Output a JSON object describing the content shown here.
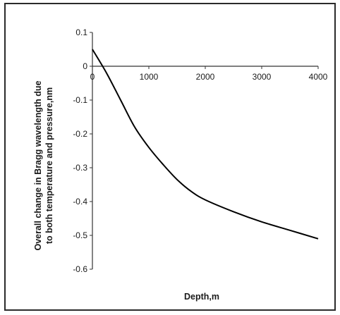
{
  "chart_data": {
    "type": "line",
    "title": "",
    "xlabel": "Depth,m",
    "ylabel_lines": [
      "Overall change in Bragg wavelength due",
      "to both temperature and pressure,nm"
    ],
    "xlim": [
      0,
      4000
    ],
    "ylim": [
      -0.6,
      0.1
    ],
    "x_ticks": [
      0,
      1000,
      2000,
      3000,
      4000
    ],
    "y_ticks": [
      0.1,
      0,
      -0.1,
      -0.2,
      -0.3,
      -0.4,
      -0.5,
      -0.6
    ],
    "x_tick_labels": [
      "0",
      "1000",
      "2000",
      "3000",
      "4000"
    ],
    "y_tick_labels": [
      "0.1",
      "0",
      "-0.1",
      "-0.2",
      "-0.3",
      "-0.4",
      "-0.5",
      "-0.6"
    ],
    "grid": false,
    "legend": "none",
    "series": [
      {
        "color": "#000000",
        "x": [
          0,
          250,
          500,
          750,
          1000,
          1250,
          1500,
          1750,
          2000,
          2500,
          3000,
          3500,
          4000
        ],
        "y": [
          0.05,
          -0.02,
          -0.1,
          -0.18,
          -0.24,
          -0.29,
          -0.335,
          -0.37,
          -0.395,
          -0.43,
          -0.46,
          -0.485,
          -0.51
        ]
      }
    ]
  }
}
